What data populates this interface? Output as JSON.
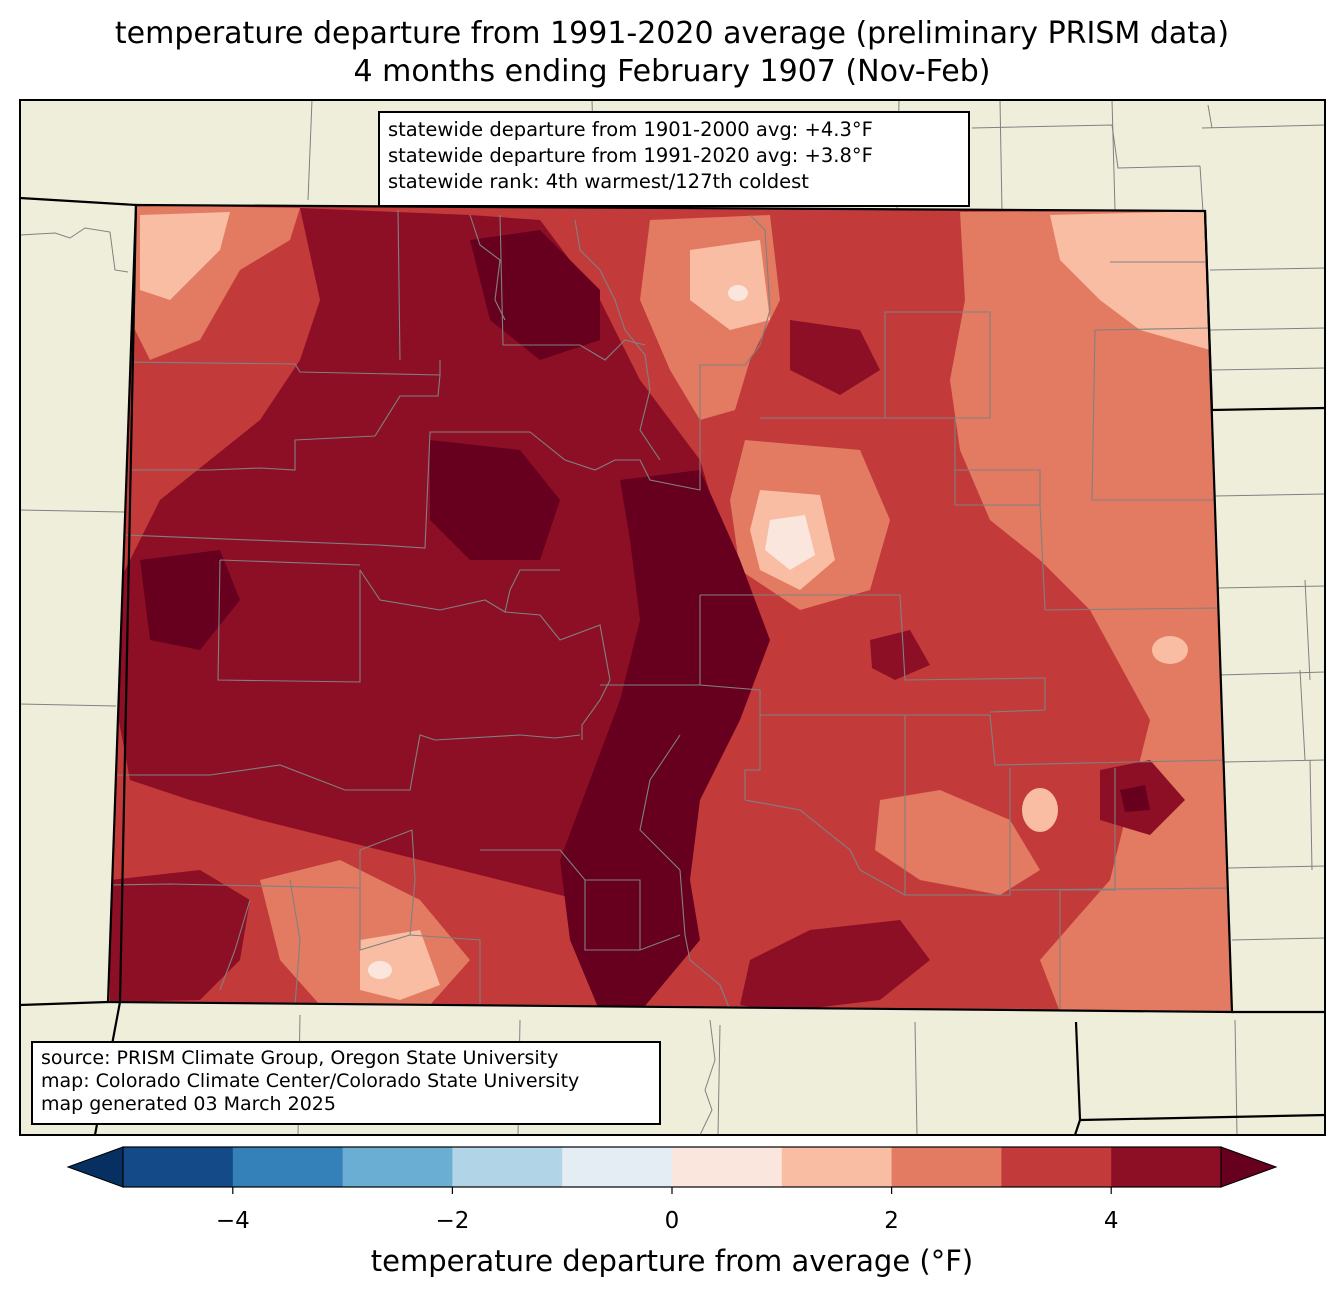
{
  "title": {
    "line1": "temperature departure from 1991-2020 average (preliminary PRISM data)",
    "line2": "4 months ending February 1907 (Nov-Feb)"
  },
  "stats_box": {
    "line1": "statewide departure from 1901-2000 avg: +4.3°F",
    "line2": "statewide departure from 1991-2020 avg: +3.8°F",
    "line3": "statewide rank: 4th warmest/127th coldest"
  },
  "source_box": {
    "line1": "source: PRISM Climate Group, Oregon State University",
    "line2": "map: Colorado Climate Center/Colorado State University",
    "line3": "map generated 03 March 2025"
  },
  "colorbar": {
    "label": "temperature departure from average (°F)",
    "bounds": [
      -5,
      -4,
      -3,
      -2,
      -1,
      0,
      1,
      2,
      3,
      4,
      5
    ],
    "colors": [
      "#144a87",
      "#3480b9",
      "#6aafd3",
      "#b2d4e7",
      "#e3edf3",
      "#fbe6dd",
      "#f8bda3",
      "#e27b62",
      "#c23b3a",
      "#8d0f25"
    ],
    "under_color": "#053061",
    "over_color": "#67001f",
    "ticks": [
      {
        "value": -4,
        "label": "−4"
      },
      {
        "value": -2,
        "label": "−2"
      },
      {
        "value": 0,
        "label": "0"
      },
      {
        "value": 2,
        "label": "2"
      },
      {
        "value": 4,
        "label": "4"
      }
    ]
  },
  "colors": {
    "land": "#efeedb",
    "county_lines": "#808080"
  }
}
